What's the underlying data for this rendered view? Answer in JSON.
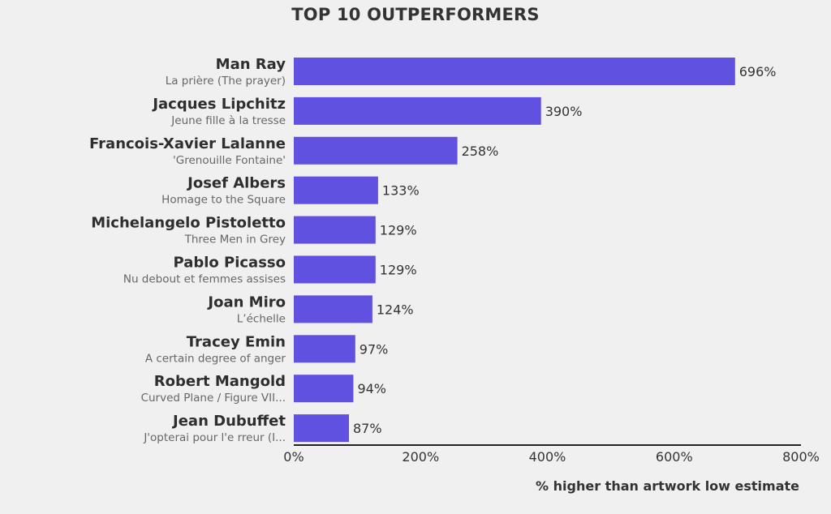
{
  "chart_data": {
    "type": "bar",
    "orientation": "horizontal",
    "title": "TOP 10 OUTPERFORMERS",
    "xlabel": "% higher than artwork low estimate",
    "xlim": [
      0,
      800
    ],
    "xticks": [
      "0%",
      "200%",
      "400%",
      "600%",
      "800%"
    ],
    "xtick_values": [
      0,
      200,
      400,
      600,
      800
    ],
    "categories": [
      "Man Ray",
      "Jacques Lipchitz",
      "Francois-Xavier Lalanne",
      "Josef Albers",
      "Michelangelo Pistoletto",
      "Pablo Picasso",
      "Joan Miro",
      "Tracey Emin",
      "Robert Mangold",
      "Jean Dubuffet"
    ],
    "subtitles": [
      "La prière (The prayer)",
      "Jeune fille à la tresse",
      "'Grenouille Fontaine'",
      "Homage to the Square",
      "Three Men in Grey",
      "Nu debout et femmes assises",
      "L’échelle",
      "A certain degree of anger",
      "Curved Plane / Figure VII...",
      "J'opterai pour l'e rreur (I..."
    ],
    "values": [
      696,
      390,
      258,
      133,
      129,
      129,
      124,
      97,
      94,
      87
    ],
    "value_labels": [
      "696%",
      "390%",
      "258%",
      "133%",
      "129%",
      "129%",
      "124%",
      "97%",
      "94%",
      "87%"
    ],
    "grid": false,
    "legend": "none",
    "bar_color": "#6151e0",
    "axis_color": "#222222"
  }
}
